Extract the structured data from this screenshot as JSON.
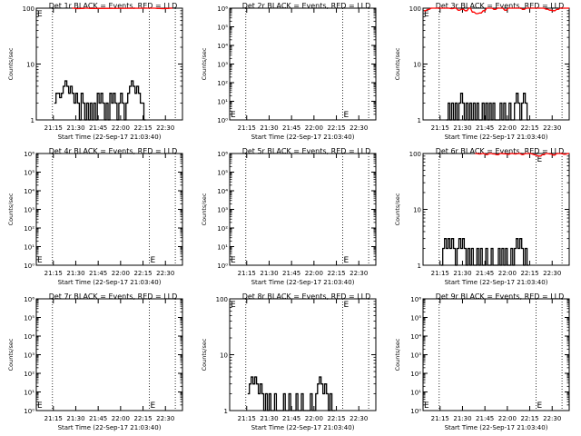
{
  "chart_data": [
    {
      "type": "line",
      "title": "Det 1r BLACK = Events, RED = LLD",
      "xlabel": "Start Time (22-Sep-17 21:03:40)",
      "ylabel": "Counts/sec",
      "ylog": true,
      "ylim": [
        1,
        100
      ],
      "yticks": [
        {
          "v": 1,
          "label": "1"
        },
        {
          "v": 10,
          "label": "10"
        },
        {
          "v": 100,
          "label": "100"
        }
      ],
      "xticks": [
        "21:15",
        "21:30",
        "21:45",
        "22:00",
        "22:15",
        "22:30"
      ],
      "xlim": [
        21.06,
        22.69
      ],
      "vlines": [
        21.24,
        22.32,
        22.61
      ],
      "flag": "E",
      "flag_x": 21.07,
      "flag_v": 80,
      "series": [
        {
          "name": "Events",
          "color": "#000000",
          "x": [
            21.27,
            21.29,
            21.31,
            21.33,
            21.35,
            21.37,
            21.39,
            21.41,
            21.43,
            21.45,
            21.47,
            21.49,
            21.51,
            21.53,
            21.55,
            21.57,
            21.59,
            21.61,
            21.63,
            21.65,
            21.67,
            21.69,
            21.71,
            21.73,
            21.75,
            21.77,
            21.79,
            21.81,
            21.83,
            21.85,
            21.87,
            21.89,
            21.91,
            21.93,
            21.95,
            21.97,
            21.99,
            22.01,
            22.03,
            22.05,
            22.07,
            22.09,
            22.11,
            22.13,
            22.15,
            22.17,
            22.19,
            22.21,
            22.23,
            22.25,
            22.27
          ],
          "y": [
            2,
            3,
            3,
            2.5,
            3,
            4,
            5,
            4,
            3,
            4,
            3,
            2,
            3,
            2,
            1,
            3,
            2,
            1,
            2,
            1,
            2,
            1,
            2,
            1,
            3,
            2,
            3,
            2,
            1,
            2,
            1,
            3,
            2,
            3,
            2,
            1,
            2,
            3,
            2,
            1,
            2,
            3,
            4,
            5,
            4,
            3,
            4,
            3,
            2,
            2,
            1
          ]
        },
        {
          "name": "LLD",
          "color": "#ff0000",
          "x": [
            21.47,
            21.52,
            21.57,
            21.62,
            21.67,
            22.37,
            22.42,
            22.47,
            22.52,
            22.57
          ],
          "y": [
            100,
            98,
            99,
            100,
            99,
            100,
            99,
            98,
            99,
            100
          ]
        }
      ]
    },
    {
      "type": "line",
      "title": "Det 2r BLACK = Events, RED = LLD",
      "xlabel": "Start Time (22-Sep-17 21:03:40)",
      "ylabel": "Counts/sec",
      "ylog": true,
      "ylim": [
        1,
        1000000
      ],
      "yticks": [
        {
          "v": 1,
          "label": "10⁰"
        },
        {
          "v": 10,
          "label": "10¹"
        },
        {
          "v": 100,
          "label": "10²"
        },
        {
          "v": 1000,
          "label": "10³"
        },
        {
          "v": 10000,
          "label": "10⁴"
        },
        {
          "v": 100000,
          "label": "10⁵"
        },
        {
          "v": 1000000,
          "label": "10⁶"
        }
      ],
      "xticks": [
        "21:15",
        "21:30",
        "21:45",
        "22:00",
        "22:15",
        "22:30"
      ],
      "xlim": [
        21.06,
        22.69
      ],
      "vlines": [
        21.24,
        22.32,
        22.61
      ],
      "flag": "E",
      "flag_x": 21.07,
      "flag_v": 2,
      "flag2": "E",
      "flag2_x": 22.33,
      "flag2_v": 2,
      "series": []
    },
    {
      "type": "line",
      "title": "Det 3r BLACK = Events, RED = LLD",
      "xlabel": "Start Time (22-Sep-17 21:03:40)",
      "ylabel": "Counts/sec",
      "ylog": true,
      "ylim": [
        1,
        100
      ],
      "yticks": [
        {
          "v": 1,
          "label": "1"
        },
        {
          "v": 10,
          "label": "10"
        },
        {
          "v": 100,
          "label": "100"
        }
      ],
      "xticks": [
        "21:15",
        "21:30",
        "21:45",
        "22:00",
        "22:15",
        "22:30"
      ],
      "xlim": [
        21.06,
        22.69
      ],
      "vlines": [
        21.24,
        22.32,
        22.61
      ],
      "flag": "E",
      "flag_x": 21.07,
      "flag_v": 80,
      "series": [
        {
          "name": "Events",
          "color": "#000000",
          "x": [
            21.33,
            21.35,
            21.37,
            21.39,
            21.41,
            21.43,
            21.45,
            21.47,
            21.49,
            21.51,
            21.53,
            21.55,
            21.57,
            21.59,
            21.61,
            21.63,
            21.65,
            21.67,
            21.69,
            21.71,
            21.73,
            21.75,
            21.77,
            21.79,
            21.81,
            21.83,
            21.85,
            21.87,
            21.89,
            21.91,
            21.93,
            21.95,
            21.97,
            21.99,
            22.01,
            22.03,
            22.05,
            22.07,
            22.09,
            22.11,
            22.13,
            22.15,
            22.17,
            22.19,
            22.21,
            22.23
          ],
          "y": [
            1,
            2,
            1,
            2,
            1,
            2,
            1,
            2,
            3,
            2,
            1,
            2,
            1,
            2,
            1,
            2,
            1,
            2,
            1,
            1,
            2,
            1,
            2,
            1,
            2,
            1,
            2,
            1,
            1,
            1,
            2,
            1,
            2,
            1,
            1,
            2,
            1,
            1,
            2,
            3,
            2,
            1,
            2,
            3,
            2,
            1
          ]
        },
        {
          "name": "LLD",
          "color": "#ff0000",
          "x": [
            21.08,
            21.12,
            21.16,
            21.2,
            21.3,
            21.34,
            21.38,
            21.42,
            21.46,
            21.5,
            21.54,
            21.58,
            21.62,
            21.66,
            21.7,
            21.74,
            21.78,
            21.82,
            21.86,
            21.9,
            21.94,
            21.98,
            22.02,
            22.06,
            22.1,
            22.14,
            22.18,
            22.22,
            22.26,
            22.36,
            22.4,
            22.44,
            22.48,
            22.52,
            22.56,
            22.6,
            22.64,
            22.68
          ],
          "y": [
            90,
            95,
            100,
            100,
            100,
            100,
            98,
            100,
            92,
            96,
            90,
            100,
            85,
            80,
            82,
            90,
            100,
            100,
            95,
            100,
            100,
            92,
            100,
            100,
            100,
            100,
            95,
            100,
            100,
            100,
            100,
            96,
            92,
            90,
            95,
            100,
            100,
            100
          ]
        }
      ]
    },
    {
      "type": "line",
      "title": "Det 4r BLACK = Events, RED = LLD",
      "xlabel": "Start Time (22-Sep-17 21:03:40)",
      "ylabel": "Counts/sec",
      "ylog": true,
      "ylim": [
        1,
        1000000
      ],
      "yticks": [
        {
          "v": 1,
          "label": "10⁰"
        },
        {
          "v": 10,
          "label": "10¹"
        },
        {
          "v": 100,
          "label": "10²"
        },
        {
          "v": 1000,
          "label": "10³"
        },
        {
          "v": 10000,
          "label": "10⁴"
        },
        {
          "v": 100000,
          "label": "10⁵"
        },
        {
          "v": 1000000,
          "label": "10⁶"
        }
      ],
      "xticks": [
        "21:15",
        "21:30",
        "21:45",
        "22:00",
        "22:15",
        "22:30"
      ],
      "xlim": [
        21.06,
        22.69
      ],
      "vlines": [
        21.24,
        22.32,
        22.61
      ],
      "flag": "E",
      "flag_x": 21.07,
      "flag_v": 2,
      "flag2": "E",
      "flag2_x": 22.33,
      "flag2_v": 2,
      "series": []
    },
    {
      "type": "line",
      "title": "Det 5r BLACK = Events, RED = LLD",
      "xlabel": "Start Time (22-Sep-17 21:03:40)",
      "ylabel": "Counts/sec",
      "ylog": true,
      "ylim": [
        1,
        1000000
      ],
      "yticks": [
        {
          "v": 1,
          "label": "10⁰"
        },
        {
          "v": 10,
          "label": "10¹"
        },
        {
          "v": 100,
          "label": "10²"
        },
        {
          "v": 1000,
          "label": "10³"
        },
        {
          "v": 10000,
          "label": "10⁴"
        },
        {
          "v": 100000,
          "label": "10⁵"
        },
        {
          "v": 1000000,
          "label": "10⁶"
        }
      ],
      "xticks": [
        "21:15",
        "21:30",
        "21:45",
        "22:00",
        "22:15",
        "22:30"
      ],
      "xlim": [
        21.06,
        22.69
      ],
      "vlines": [
        21.24,
        22.32,
        22.61
      ],
      "flag": "E",
      "flag_x": 21.07,
      "flag_v": 2,
      "flag2": "E",
      "flag2_x": 22.33,
      "flag2_v": 2,
      "series": []
    },
    {
      "type": "line",
      "title": "Det 6r BLACK = Events, RED = LLD",
      "xlabel": "Start Time (22-Sep-17 21:03:40)",
      "ylabel": "Counts/sec",
      "ylog": true,
      "ylim": [
        1,
        100
      ],
      "yticks": [
        {
          "v": 1,
          "label": "1"
        },
        {
          "v": 10,
          "label": "10"
        },
        {
          "v": 100,
          "label": "100"
        }
      ],
      "xticks": [
        "21:15",
        "21:30",
        "21:45",
        "22:00",
        "22:15",
        "22:30"
      ],
      "xlim": [
        21.06,
        22.69
      ],
      "vlines": [
        21.24,
        22.32,
        22.61
      ],
      "flag": "E",
      "flag_x": 22.33,
      "flag_v": 80,
      "series": [
        {
          "name": "Events",
          "color": "#000000",
          "x": [
            21.27,
            21.29,
            21.31,
            21.33,
            21.35,
            21.37,
            21.39,
            21.41,
            21.43,
            21.45,
            21.47,
            21.49,
            21.51,
            21.53,
            21.55,
            21.57,
            21.59,
            21.61,
            21.63,
            21.65,
            21.67,
            21.69,
            21.71,
            21.73,
            21.75,
            21.77,
            21.79,
            21.81,
            21.83,
            21.85,
            21.87,
            21.89,
            21.91,
            21.93,
            21.95,
            21.97,
            21.99,
            22.01,
            22.03,
            22.05,
            22.07,
            22.09,
            22.11,
            22.13,
            22.15,
            22.17,
            22.19,
            22.21,
            22.23
          ],
          "y": [
            1,
            2,
            3,
            2,
            3,
            2,
            3,
            2,
            1,
            2,
            3,
            2,
            3,
            2,
            1,
            2,
            1,
            2,
            1,
            1,
            2,
            1,
            2,
            1,
            1,
            2,
            1,
            1,
            2,
            1,
            1,
            1,
            2,
            1,
            2,
            1,
            2,
            1,
            1,
            2,
            1,
            2,
            3,
            2,
            3,
            2,
            1,
            2,
            1
          ]
        },
        {
          "name": "LLD",
          "color": "#ff0000",
          "x": [
            21.65,
            21.69,
            21.73,
            21.77,
            21.81,
            21.85,
            21.89,
            21.93,
            21.97,
            22.01,
            22.05,
            22.09,
            22.13,
            22.17,
            22.21,
            22.25,
            22.36,
            22.4,
            22.44,
            22.48,
            22.52,
            22.56,
            22.6,
            22.64,
            22.68
          ],
          "y": [
            100,
            98,
            100,
            96,
            100,
            98,
            95,
            100,
            99,
            97,
            100,
            98,
            100,
            96,
            100,
            100,
            90,
            95,
            100,
            98,
            94,
            100,
            100,
            97,
            100
          ]
        }
      ]
    },
    {
      "type": "line",
      "title": "Det 7r BLACK = Events, RED = LLD",
      "xlabel": "Start Time (22-Sep-17 21:03:40)",
      "ylabel": "Counts/sec",
      "ylog": true,
      "ylim": [
        1,
        1000000
      ],
      "yticks": [
        {
          "v": 1,
          "label": "10⁰"
        },
        {
          "v": 10,
          "label": "10¹"
        },
        {
          "v": 100,
          "label": "10²"
        },
        {
          "v": 1000,
          "label": "10³"
        },
        {
          "v": 10000,
          "label": "10⁴"
        },
        {
          "v": 100000,
          "label": "10⁵"
        },
        {
          "v": 1000000,
          "label": "10⁶"
        }
      ],
      "xticks": [
        "21:15",
        "21:30",
        "21:45",
        "22:00",
        "22:15",
        "22:30"
      ],
      "xlim": [
        21.06,
        22.69
      ],
      "vlines": [
        21.24,
        22.32,
        22.61
      ],
      "flag": "E",
      "flag_x": 21.07,
      "flag_v": 2,
      "flag2": "E",
      "flag2_x": 22.33,
      "flag2_v": 2,
      "series": []
    },
    {
      "type": "line",
      "title": "Det 8r BLACK = Events, RED = LLD",
      "xlabel": "Start Time (22-Sep-17 21:03:40)",
      "ylabel": "Counts/sec",
      "ylog": true,
      "ylim": [
        1,
        100
      ],
      "yticks": [
        {
          "v": 1,
          "label": "1"
        },
        {
          "v": 10,
          "label": "10"
        },
        {
          "v": 100,
          "label": "100"
        }
      ],
      "xticks": [
        "21:15",
        "21:30",
        "21:45",
        "22:00",
        "22:15",
        "22:30"
      ],
      "xlim": [
        21.06,
        22.69
      ],
      "vlines": [
        21.24,
        22.32,
        22.61
      ],
      "flag": "E",
      "flag_x": 21.07,
      "flag_v": 80,
      "flag2": "E",
      "flag2_x": 22.33,
      "flag2_v": 80,
      "series": [
        {
          "name": "Events",
          "color": "#000000",
          "x": [
            21.27,
            21.29,
            21.31,
            21.33,
            21.35,
            21.37,
            21.39,
            21.41,
            21.43,
            21.45,
            21.47,
            21.49,
            21.51,
            21.53,
            21.55,
            21.57,
            21.59,
            21.61,
            21.63,
            21.65,
            21.67,
            21.69,
            21.71,
            21.73,
            21.75,
            21.77,
            21.79,
            21.81,
            21.83,
            21.85,
            21.87,
            21.89,
            21.91,
            21.93,
            21.95,
            21.97,
            21.99,
            22.01,
            22.03,
            22.05,
            22.07,
            22.09,
            22.11,
            22.13,
            22.15,
            22.17,
            22.19,
            22.21,
            22.23
          ],
          "y": [
            2,
            3,
            4,
            3,
            4,
            3,
            2,
            3,
            2,
            1,
            2,
            1,
            2,
            1,
            1,
            2,
            1,
            1,
            1,
            1,
            2,
            1,
            1,
            2,
            1,
            1,
            1,
            2,
            1,
            1,
            2,
            1,
            1,
            1,
            1,
            2,
            1,
            1,
            2,
            3,
            4,
            3,
            2,
            3,
            2,
            1,
            2,
            1,
            1
          ]
        }
      ]
    },
    {
      "type": "line",
      "title": "Det 9r BLACK = Events, RED = LLD",
      "xlabel": "Start Time (22-Sep-17 21:03:40)",
      "ylabel": "Counts/sec",
      "ylog": true,
      "ylim": [
        1,
        1000000
      ],
      "yticks": [
        {
          "v": 1,
          "label": "10⁰"
        },
        {
          "v": 10,
          "label": "10¹"
        },
        {
          "v": 100,
          "label": "10²"
        },
        {
          "v": 1000,
          "label": "10³"
        },
        {
          "v": 10000,
          "label": "10⁴"
        },
        {
          "v": 100000,
          "label": "10⁵"
        },
        {
          "v": 1000000,
          "label": "10⁶"
        }
      ],
      "xticks": [
        "21:15",
        "21:30",
        "21:45",
        "22:00",
        "22:15",
        "22:30"
      ],
      "xlim": [
        21.06,
        22.69
      ],
      "vlines": [
        21.24,
        22.32,
        22.61
      ],
      "flag": "E",
      "flag_x": 21.07,
      "flag_v": 2,
      "flag2": "E",
      "flag2_x": 22.33,
      "flag2_v": 2,
      "series": []
    }
  ]
}
